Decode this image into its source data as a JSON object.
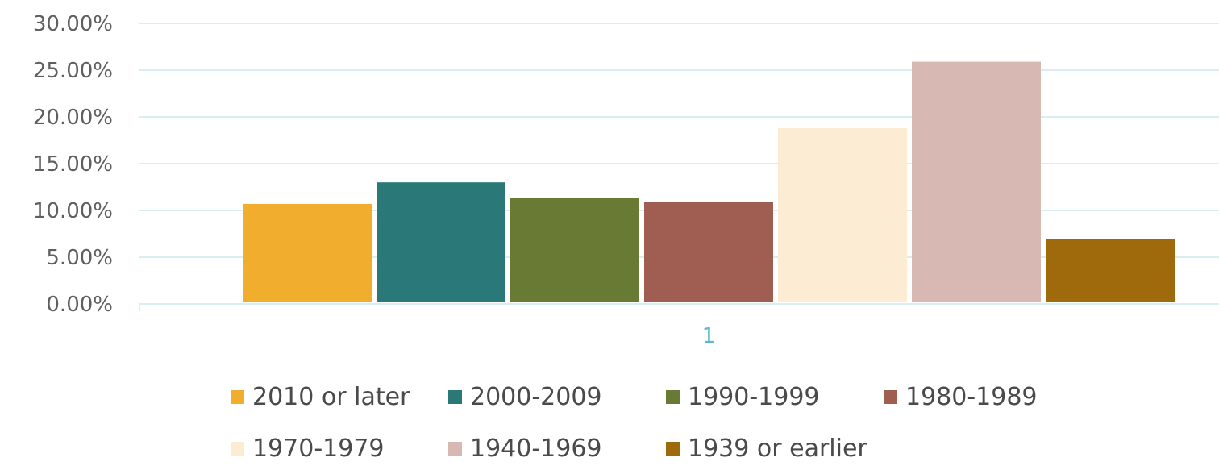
{
  "chart_data": {
    "type": "bar",
    "categories": [
      "1"
    ],
    "ylim": [
      0,
      30
    ],
    "yticks": [
      "0.00%",
      "5.00%",
      "10.00%",
      "15.00%",
      "20.00%",
      "25.00%",
      "30.00%"
    ],
    "grid": true,
    "legend_position": "bottom",
    "series": [
      {
        "name": "2010 or later",
        "values": [
          10.7
        ],
        "color": "#f0ad2e"
      },
      {
        "name": "2000-2009",
        "values": [
          13.0
        ],
        "color": "#2a7878"
      },
      {
        "name": "1990-1999",
        "values": [
          11.3
        ],
        "color": "#687a33"
      },
      {
        "name": "1980-1989",
        "values": [
          10.9
        ],
        "color": "#a05e52"
      },
      {
        "name": "1970-1979",
        "values": [
          18.8
        ],
        "color": "#fcecd4"
      },
      {
        "name": "1940-1969",
        "values": [
          25.9
        ],
        "color": "#d8b8b3"
      },
      {
        "name": "1939 or earlier",
        "values": [
          6.9
        ],
        "color": "#9e6a0c"
      }
    ]
  }
}
